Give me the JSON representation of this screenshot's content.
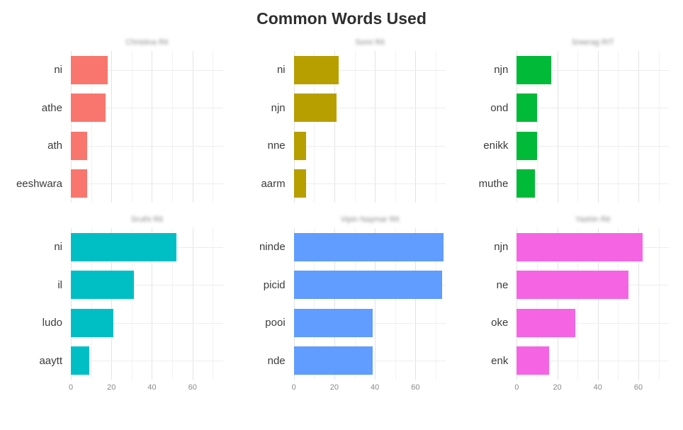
{
  "title": "Common Words Used",
  "chart_data": {
    "type": "bar",
    "orientation": "horizontal",
    "title": "Common Words Used",
    "xlabel": "",
    "ylabel": "",
    "xlim": [
      0,
      75
    ],
    "xticks": [
      0,
      20,
      40,
      60
    ],
    "grid": true,
    "legend": "none",
    "facets": [
      {
        "title": "Christina Rit",
        "color": "#F8766D",
        "categories": [
          "ni",
          "athe",
          "ath",
          "eeshwara"
        ],
        "values": [
          18,
          17,
          8,
          8
        ]
      },
      {
        "title": "Somi Rit",
        "color": "#B79F00",
        "categories": [
          "ni",
          "njn",
          "nne",
          "aarm"
        ],
        "values": [
          22,
          21,
          6,
          6
        ]
      },
      {
        "title": "Sreerag RIT",
        "color": "#00BA38",
        "categories": [
          "njn",
          "ond",
          "enikk",
          "muthe"
        ],
        "values": [
          17,
          10,
          10,
          9
        ]
      },
      {
        "title": "Sruthi Rit",
        "color": "#00BFC4",
        "categories": [
          "ni",
          "il",
          "ludo",
          "aaytt"
        ],
        "values": [
          52,
          31,
          21,
          9
        ]
      },
      {
        "title": "Vipin Naymar Rit",
        "color": "#619CFF",
        "categories": [
          "ninde",
          "picid",
          "pooi",
          "nde"
        ],
        "values": [
          74,
          73,
          39,
          39
        ]
      },
      {
        "title": "Yashin Rit",
        "color": "#F564E3",
        "categories": [
          "njn",
          "ne",
          "oke",
          "enk"
        ],
        "values": [
          62,
          55,
          29,
          16
        ]
      }
    ]
  }
}
